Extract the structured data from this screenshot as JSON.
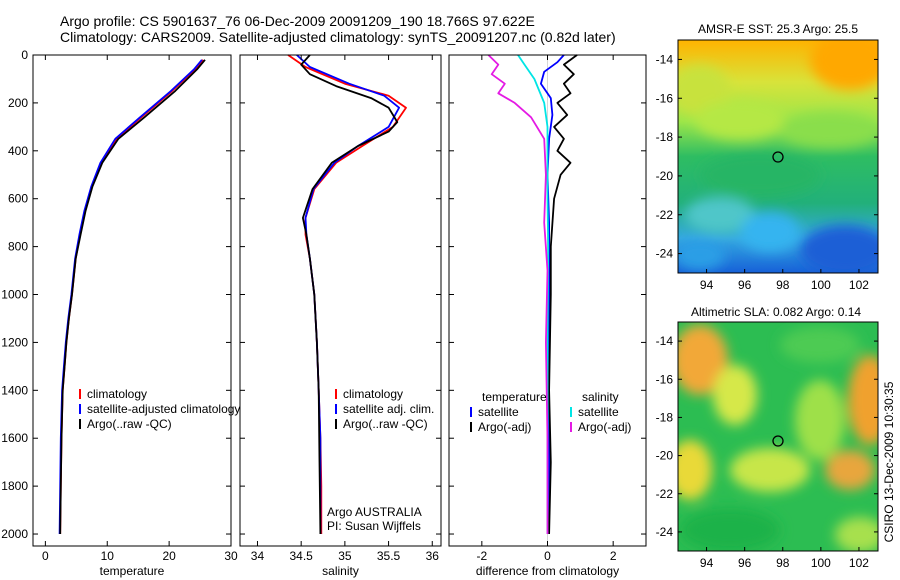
{
  "figure": {
    "title_line1": "Argo profile: CS 5901637_76 06-Dec-2009 20091209_190 18.766S 97.622E",
    "title_line2": "Climatology: CARS2009. Satellite-adjusted climatology: synTS_20091207.nc (0.82d later)",
    "credit": "CSIRO 13-Dec-2009 10:30:35",
    "colors": {
      "climatology": "#ff0000",
      "satellite": "#0000ff",
      "argo": "#000000",
      "cyan": "#00e5e5",
      "magenta": "#e41ae4"
    }
  },
  "chart_data": [
    {
      "type": "line",
      "panel": "temperature",
      "xlabel": "temperature",
      "ylabel": "",
      "xlim": [
        -2,
        30
      ],
      "ylim": [
        2050,
        0
      ],
      "xticks": [
        0,
        10,
        20,
        30
      ],
      "yticks": [
        0,
        200,
        400,
        600,
        800,
        1000,
        1200,
        1400,
        1600,
        1800,
        2000
      ],
      "legend": [
        "climatology",
        "satellite-adjusted climatology",
        "Argo(..raw -QC)"
      ],
      "series": [
        {
          "name": "climatology",
          "color": "red",
          "x": [
            25.5,
            24.2,
            20.5,
            15.5,
            11.5,
            9.0,
            7.5,
            6.4,
            5.6,
            4.9,
            4.3,
            3.8,
            3.4,
            3.1,
            2.8,
            2.6,
            2.5,
            2.4
          ],
          "y": [
            20,
            60,
            150,
            260,
            350,
            450,
            550,
            650,
            750,
            850,
            1000,
            1100,
            1200,
            1300,
            1400,
            1600,
            1800,
            2000
          ]
        },
        {
          "name": "satellite-adjusted climatology",
          "color": "blue",
          "x": [
            25.3,
            24.0,
            20.3,
            15.3,
            11.3,
            8.9,
            7.4,
            6.3,
            5.5,
            4.8,
            4.2,
            3.7,
            3.3,
            3.0,
            2.7,
            2.5,
            2.4,
            2.3
          ],
          "y": [
            20,
            60,
            150,
            260,
            350,
            450,
            550,
            650,
            750,
            850,
            1000,
            1100,
            1200,
            1300,
            1400,
            1600,
            1800,
            2000
          ]
        },
        {
          "name": "Argo(..raw -QC)",
          "color": "black",
          "x": [
            25.8,
            24.5,
            21.0,
            16.0,
            11.8,
            9.2,
            7.6,
            6.5,
            5.7,
            4.9,
            4.3,
            3.8,
            3.4,
            3.1,
            2.8,
            2.6,
            2.5,
            2.4
          ],
          "y": [
            20,
            60,
            150,
            260,
            350,
            450,
            550,
            650,
            750,
            850,
            1000,
            1100,
            1200,
            1300,
            1400,
            1600,
            1800,
            2000
          ]
        }
      ]
    },
    {
      "type": "line",
      "panel": "salinity",
      "xlabel": "salinity",
      "ylabel": "",
      "xlim": [
        33.8,
        36.1
      ],
      "ylim": [
        2050,
        0
      ],
      "xticks": [
        34,
        34.5,
        35,
        35.5,
        36
      ],
      "legend": [
        "climatology",
        "satellite adj. clim.",
        "Argo(..raw -QC)"
      ],
      "annotation": [
        "Argo AUSTRALIA",
        "PI: Susan Wijffels"
      ],
      "series": [
        {
          "name": "climatology",
          "color": "red",
          "x": [
            34.35,
            34.55,
            35.0,
            35.5,
            35.7,
            35.55,
            35.2,
            34.9,
            34.65,
            34.55,
            34.55,
            34.6,
            34.65,
            34.68,
            34.7,
            34.72,
            34.73,
            34.73
          ],
          "y": [
            0,
            50,
            120,
            170,
            220,
            300,
            380,
            450,
            560,
            680,
            750,
            850,
            1000,
            1200,
            1400,
            1600,
            1800,
            2000
          ]
        },
        {
          "name": "satellite adj. clim.",
          "color": "blue",
          "x": [
            34.45,
            34.6,
            35.05,
            35.45,
            35.62,
            35.5,
            35.15,
            34.88,
            34.64,
            34.55,
            34.56,
            34.6,
            34.65,
            34.68,
            34.7,
            34.72,
            34.72,
            34.72
          ],
          "y": [
            0,
            50,
            120,
            170,
            220,
            300,
            380,
            450,
            560,
            680,
            750,
            850,
            1000,
            1200,
            1400,
            1600,
            1800,
            2000
          ]
        },
        {
          "name": "Argo(..raw -QC)",
          "color": "black",
          "x": [
            34.6,
            34.5,
            34.6,
            34.9,
            35.3,
            35.5,
            35.6,
            35.5,
            35.15,
            34.85,
            34.63,
            34.52,
            34.56,
            34.6,
            34.65,
            34.68,
            34.7,
            34.71,
            34.72
          ],
          "y": [
            0,
            40,
            80,
            130,
            180,
            220,
            280,
            320,
            380,
            450,
            560,
            680,
            750,
            850,
            1000,
            1200,
            1400,
            1700,
            2000
          ]
        }
      ]
    },
    {
      "type": "line",
      "panel": "difference",
      "xlabel": "difference from climatology",
      "ylabel": "",
      "xlim": [
        -3,
        3
      ],
      "ylim": [
        2050,
        0
      ],
      "xticks": [
        -2,
        0,
        2
      ],
      "legend": [
        "temperature",
        "satellite",
        "Argo(-adj)",
        "salinity",
        "satellite",
        "Argo(-adj)"
      ],
      "series": [
        {
          "name": "satellite",
          "color": "blue",
          "x": [
            0.5,
            0.3,
            -0.1,
            -0.2,
            0.1,
            0.15,
            0.05,
            0.0,
            0.05,
            0.05,
            0.05,
            0.05,
            0.05,
            0.05
          ],
          "y": [
            0,
            30,
            70,
            120,
            180,
            250,
            350,
            500,
            700,
            900,
            1200,
            1500,
            1800,
            2000
          ]
        },
        {
          "name": "Argo(-adj)",
          "color": "black",
          "x": [
            0.9,
            0.5,
            0.8,
            0.5,
            0.7,
            0.3,
            0.6,
            0.2,
            0.5,
            0.3,
            0.7,
            0.4,
            0.2,
            0.1,
            0.1,
            0.05,
            0.1,
            0.05
          ],
          "y": [
            0,
            40,
            80,
            120,
            160,
            200,
            250,
            300,
            350,
            400,
            450,
            500,
            600,
            800,
            1000,
            1400,
            1700,
            2000
          ]
        },
        {
          "name": "satellite",
          "color": "cyan",
          "x": [
            -0.9,
            -0.7,
            -0.4,
            -0.1,
            0.0,
            0.0,
            0.0,
            0.02,
            0.0,
            0.0,
            0.0
          ],
          "y": [
            0,
            40,
            100,
            200,
            300,
            400,
            600,
            800,
            1200,
            1600,
            2000
          ]
        },
        {
          "name": "Argo(-adj)",
          "color": "magenta",
          "x": [
            -1.8,
            -1.5,
            -1.7,
            -1.3,
            -1.5,
            -1.0,
            -0.5,
            -0.1,
            -0.05,
            -0.1,
            0.0,
            -0.05,
            0.0,
            0.0
          ],
          "y": [
            0,
            40,
            80,
            120,
            160,
            200,
            260,
            350,
            500,
            700,
            900,
            1200,
            1600,
            2000
          ]
        }
      ]
    },
    {
      "type": "heatmap",
      "panel": "sst-map",
      "title": "AMSR-E SST: 25.3 Argo: 25.5",
      "xlim": [
        92.5,
        103
      ],
      "ylim": [
        -25,
        -13
      ],
      "xticks": [
        94,
        96,
        98,
        100,
        102
      ],
      "yticks": [
        -14,
        -16,
        -18,
        -20,
        -22,
        -24
      ],
      "marker": [
        97.622,
        -18.766
      ]
    },
    {
      "type": "heatmap",
      "panel": "sla-map",
      "title": "Altimetric SLA: 0.082 Argo: 0.14",
      "xlim": [
        92.5,
        103
      ],
      "ylim": [
        -25,
        -13
      ],
      "xticks": [
        94,
        96,
        98,
        100,
        102
      ],
      "yticks": [
        -14,
        -16,
        -18,
        -20,
        -22,
        -24
      ],
      "marker": [
        97.622,
        -18.766
      ]
    }
  ]
}
